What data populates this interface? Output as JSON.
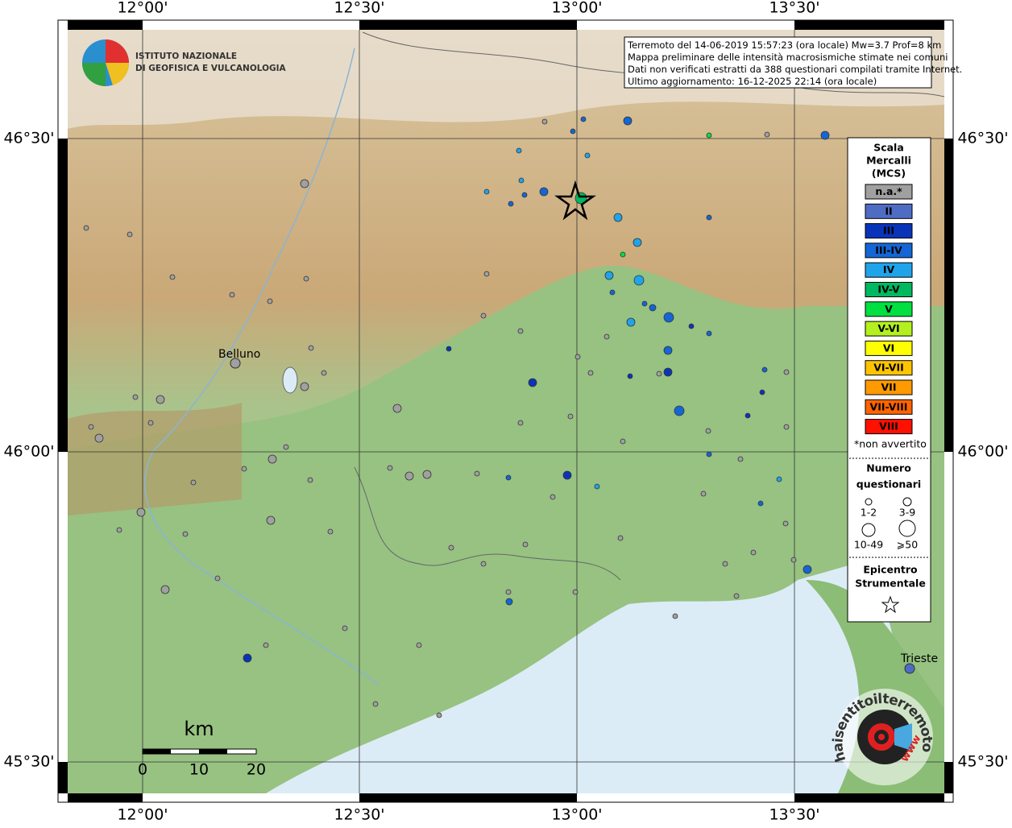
{
  "logo": {
    "line1": "ISTITUTO NAZIONALE",
    "line2": "DI GEOFISICA E VULCANOLOGIA"
  },
  "info": [
    "Terremoto del 14-06-2019 15:57:23 (ora locale) Mw=3.7 Prof=8 km",
    "Mappa preliminare delle intensità macrosismiche stimate nei comuni",
    "Dati non verificati estratti da 388 questionari compilati tramite Internet.",
    "Ultimo aggiornamento: 16-12-2025 22:14 (ora locale)"
  ],
  "axes": {
    "lon_labels": [
      "12°00'",
      "12°30'",
      "13°00'",
      "13°30'"
    ],
    "lat_labels": [
      "46°30'",
      "46°00'",
      "45°30'"
    ]
  },
  "places": [
    "Belluno",
    "Trieste"
  ],
  "scale_bar": {
    "unit": "km",
    "labels": [
      "0",
      "10",
      "20"
    ]
  },
  "legend": {
    "title": [
      "Scala",
      "Mercalli",
      "(MCS)"
    ],
    "items": [
      {
        "label": "n.a.*",
        "color": "#a0a0a0"
      },
      {
        "label": "II",
        "color": "#4f6cc4"
      },
      {
        "label": "III",
        "color": "#0a34b8"
      },
      {
        "label": "III-IV",
        "color": "#1466d6"
      },
      {
        "label": "IV",
        "color": "#1fa4ea"
      },
      {
        "label": "IV-V",
        "color": "#00b860"
      },
      {
        "label": "V",
        "color": "#00e040"
      },
      {
        "label": "V-VI",
        "color": "#b4f020"
      },
      {
        "label": "VI",
        "color": "#ffff00"
      },
      {
        "label": "VI-VII",
        "color": "#ffc400"
      },
      {
        "label": "VII",
        "color": "#ff9a00"
      },
      {
        "label": "VII-VIII",
        "color": "#ff6400"
      },
      {
        "label": "VIII",
        "color": "#ff1000"
      }
    ],
    "note": "*non avvertito",
    "count_title": [
      "Numero",
      "questionari"
    ],
    "count_sizes": [
      "1-2",
      "3-9",
      "10-49",
      "⩾50"
    ],
    "epicenter": [
      "Epicentro",
      "Strumentale"
    ]
  },
  "site_logo": {
    "text": "haisentitoilterremoto.it",
    "www": "www"
  }
}
